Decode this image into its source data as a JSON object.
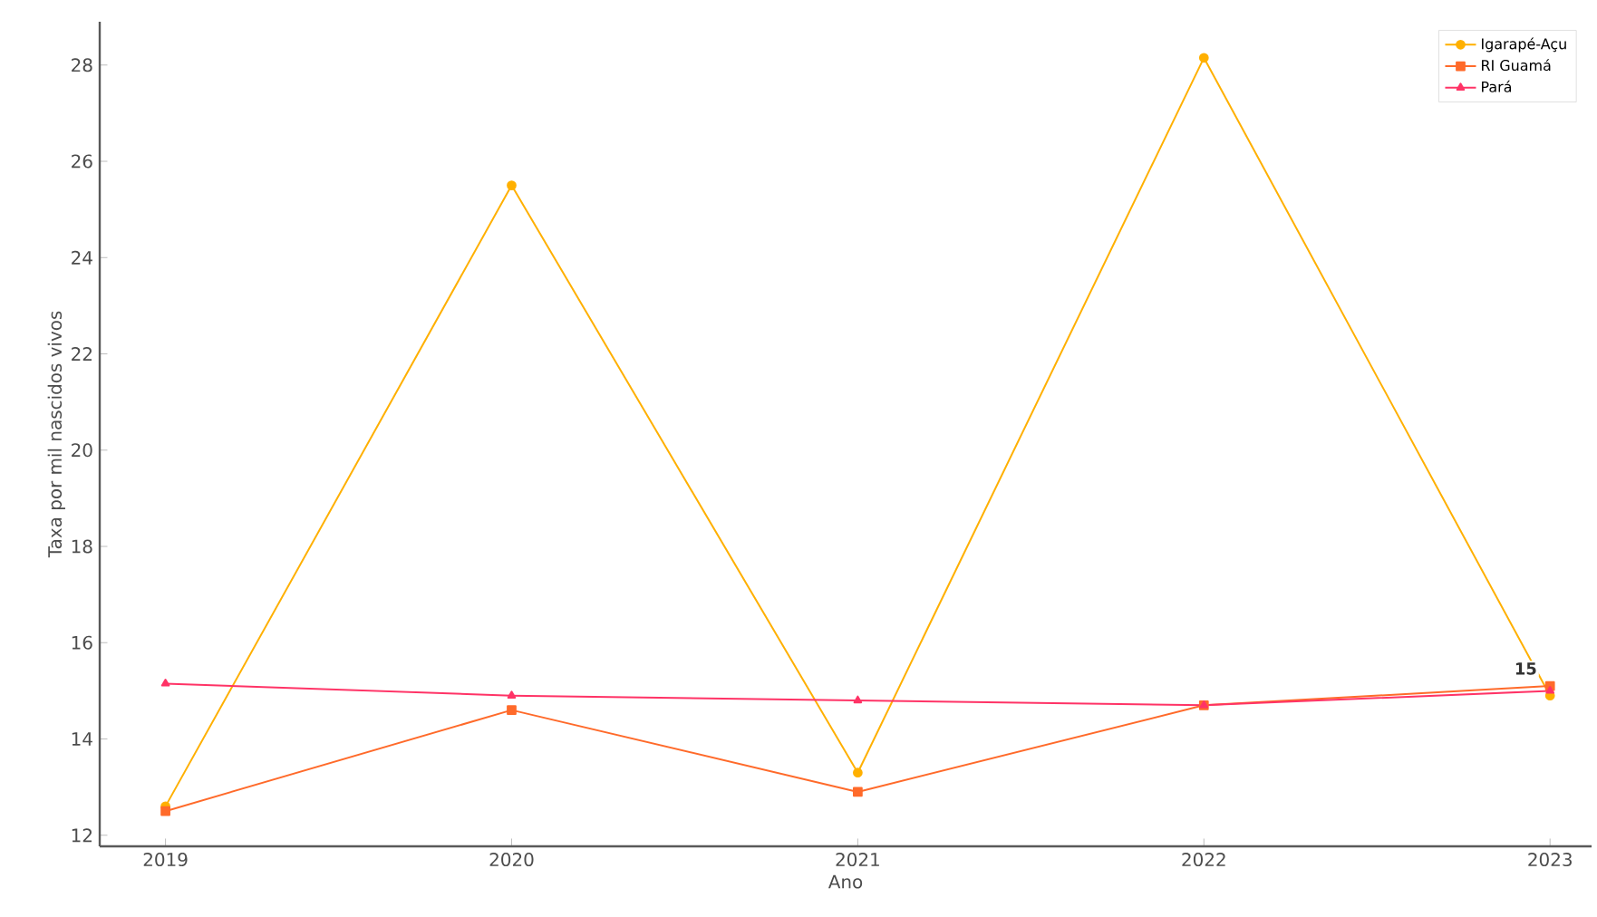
{
  "chart_data": {
    "type": "line",
    "xlabel": "Ano",
    "ylabel": "Taxa por mil nascidos vivos",
    "x": [
      2019,
      2020,
      2021,
      2022,
      2023
    ],
    "series": [
      {
        "name": "Igarapé-Açu",
        "color": "#ffb000",
        "marker": "circle",
        "values": [
          12.6,
          25.5,
          13.3,
          28.15,
          14.9
        ]
      },
      {
        "name": "RI Guamá",
        "color": "#ff6a2a",
        "marker": "square",
        "values": [
          12.5,
          14.6,
          12.9,
          14.7,
          15.1
        ]
      },
      {
        "name": "Pará",
        "color": "#ff3366",
        "marker": "triangle",
        "values": [
          15.15,
          14.9,
          14.8,
          14.7,
          15.0
        ]
      }
    ],
    "annotations": [
      {
        "text": "15",
        "x": 2023,
        "y": 15.1
      }
    ],
    "xlim": [
      2018.81,
      2023.12
    ],
    "ylim": [
      11.77,
      28.9
    ],
    "xticks": [
      2019,
      2020,
      2021,
      2022,
      2023
    ],
    "yticks": [
      12,
      14,
      16,
      18,
      20,
      22,
      24,
      26,
      28
    ],
    "grid": false,
    "legend": "top right"
  }
}
